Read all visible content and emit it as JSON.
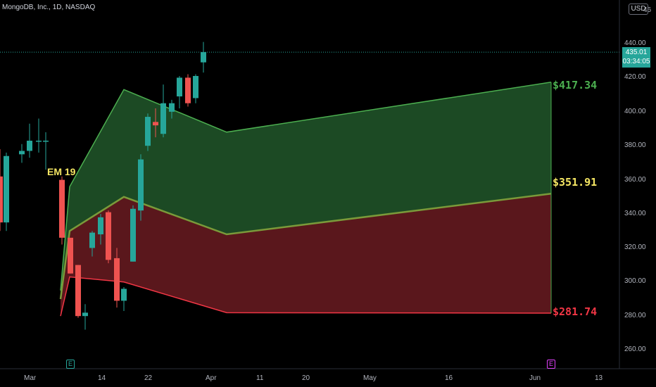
{
  "header": {
    "symbol": "MongoDB, Inc., 1D, NASDAQ",
    "currency": "USD",
    "corner_tick": "46"
  },
  "price_badge": {
    "price": "435.01",
    "countdown": "03:34:05"
  },
  "y_axis": {
    "ticks": [
      "440.00",
      "420.00",
      "400.00",
      "380.00",
      "360.00",
      "340.00",
      "320.00",
      "300.00",
      "280.00",
      "260.00"
    ]
  },
  "x_axis": {
    "ticks": [
      "Mar",
      "14",
      "22",
      "Apr",
      "11",
      "20",
      "May",
      "16",
      "Jun",
      "13"
    ]
  },
  "annotations": {
    "em_label": "EM 19",
    "upper": "$417.34",
    "middle": "$351.91",
    "lower": "$281.74"
  },
  "event_icons": {
    "earnings_past": "E",
    "earnings_future": "E"
  },
  "colors": {
    "up": "#26a69a",
    "down": "#ef5350",
    "green_zone": "#1c4a24",
    "red_zone": "#5a171c",
    "green_line": "#4caf50",
    "red_line": "#f23645",
    "yellow_label": "#f5e663"
  },
  "chart_data": {
    "type": "candlestick",
    "ylim": [
      250,
      450
    ],
    "current_price": 435.01,
    "candles": [
      {
        "o": 362,
        "h": 378,
        "l": 330,
        "c": 335
      },
      {
        "o": 335,
        "h": 376,
        "l": 330,
        "c": 374
      },
      {
        "o": 375,
        "h": 381,
        "l": 370,
        "c": 377
      },
      {
        "o": 377,
        "h": 393,
        "l": 373,
        "c": 383
      },
      {
        "o": 383,
        "h": 396,
        "l": 376,
        "c": 383
      },
      {
        "o": 383,
        "h": 388,
        "l": 366,
        "c": 383
      },
      {
        "o": 360,
        "h": 362,
        "l": 322,
        "c": 326
      },
      {
        "o": 326,
        "h": 326,
        "l": 305,
        "c": 305
      },
      {
        "o": 310,
        "h": 310,
        "l": 279,
        "c": 280
      },
      {
        "o": 280,
        "h": 287,
        "l": 272,
        "c": 282
      },
      {
        "o": 320,
        "h": 330,
        "l": 315,
        "c": 329
      },
      {
        "o": 328,
        "h": 340,
        "l": 322,
        "c": 338
      },
      {
        "o": 341,
        "h": 342,
        "l": 311,
        "c": 313
      },
      {
        "o": 314,
        "h": 320,
        "l": 285,
        "c": 289
      },
      {
        "o": 289,
        "h": 297,
        "l": 283,
        "c": 296
      },
      {
        "o": 312,
        "h": 345,
        "l": 312,
        "c": 343
      },
      {
        "o": 342,
        "h": 375,
        "l": 336,
        "c": 372
      },
      {
        "o": 380,
        "h": 399,
        "l": 377,
        "c": 397
      },
      {
        "o": 394,
        "h": 402,
        "l": 385,
        "c": 392
      },
      {
        "o": 387,
        "h": 416,
        "l": 385,
        "c": 405
      },
      {
        "o": 400,
        "h": 407,
        "l": 396,
        "c": 405
      },
      {
        "o": 409,
        "h": 421,
        "l": 402,
        "c": 420
      },
      {
        "o": 420,
        "h": 422,
        "l": 403,
        "c": 405
      },
      {
        "o": 408,
        "h": 422,
        "l": 405,
        "c": 421
      },
      {
        "o": 429,
        "h": 441,
        "l": 423,
        "c": 435
      }
    ],
    "expected_move": {
      "upper": [
        [
          0,
          295
        ],
        [
          1,
          356
        ],
        [
          2,
          413
        ],
        [
          3,
          388
        ],
        [
          4,
          417.34
        ]
      ],
      "middle": [
        [
          0,
          290
        ],
        [
          1,
          330
        ],
        [
          2,
          350
        ],
        [
          3,
          328
        ],
        [
          4,
          351.91
        ]
      ],
      "lower": [
        [
          0,
          280
        ],
        [
          1,
          303
        ],
        [
          2,
          300
        ],
        [
          3,
          282
        ],
        [
          4,
          281.74
        ]
      ]
    }
  }
}
